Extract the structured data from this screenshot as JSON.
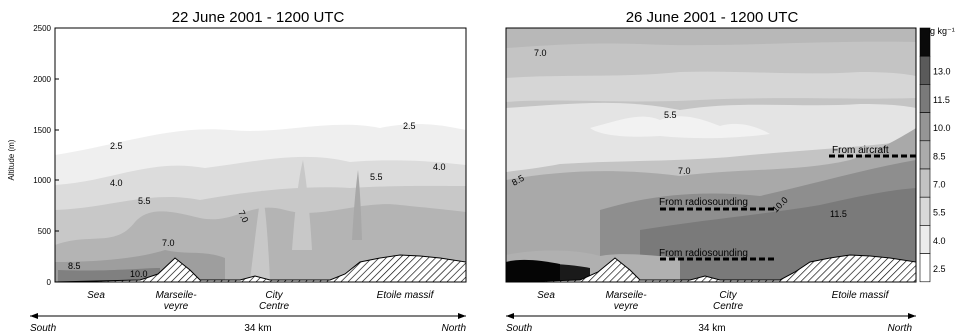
{
  "panels": [
    {
      "title": "22 June 2001  -  1200 UTC",
      "ylabel": "Altitude (m)",
      "yticks": [
        "0",
        "500",
        "1000",
        "1500",
        "2000",
        "2500"
      ],
      "contour_labels": [
        "2.5",
        "2.5",
        "4.0",
        "4.0",
        "5.5",
        "5.5",
        "7.0",
        "7.0",
        "8.5",
        "10.0"
      ],
      "places": [
        "Sea",
        "Marseile-\nveyre",
        "City\nCentre",
        "Etoile massif"
      ],
      "south": "South",
      "north": "North",
      "distance": "34 km"
    },
    {
      "title": "26 June 2001  -  1200 UTC",
      "contour_labels": [
        "7.0",
        "5.5",
        "7.0",
        "8.5",
        "10.0",
        "11.5"
      ],
      "annotations": [
        "From aircraft",
        "From radiosounding",
        "From radiosounding"
      ],
      "places": [
        "Sea",
        "Marseile-\nveyre",
        "City\nCentre",
        "Etoile massif"
      ],
      "south": "South",
      "north": "North",
      "distance": "34 km"
    }
  ],
  "colorbar": {
    "unit": "g kg⁻¹",
    "labels": [
      "13.0",
      "11.5",
      "10.0",
      "8.5",
      "7.0",
      "5.5",
      "4.0",
      "2.5"
    ],
    "colors": [
      "#0a0a0a",
      "#5a5a5a",
      "#7a7a7a",
      "#959595",
      "#ababab",
      "#c3c3c3",
      "#d9d9d9",
      "#ececec",
      "#ffffff"
    ]
  }
}
